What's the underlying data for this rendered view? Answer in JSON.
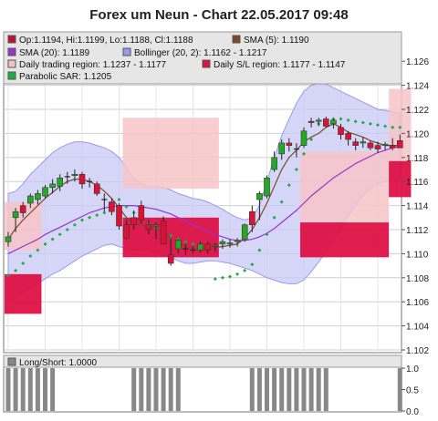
{
  "chart_data": {
    "type": "candlestick",
    "title": "Forex um Neun - Chart 22.05.2017 09:48",
    "ylim": [
      1.102,
      1.127
    ],
    "yticks": [
      "1.126",
      "1.124",
      "1.122",
      "1.120",
      "1.118",
      "1.116",
      "1.114",
      "1.112",
      "1.110",
      "1.108",
      "1.106",
      "1.104",
      "1.102"
    ],
    "grid": true,
    "legend": {
      "placement": "top",
      "entries": [
        {
          "label": "Op:1.1194, Hi:1.1199, Lo:1.1188, Cl:1.1188",
          "color": "#c01030"
        },
        {
          "label": "SMA (5): 1.1190",
          "color": "#7a4a2a"
        },
        {
          "label": "SMA (20): 1.1189",
          "color": "#9933cc"
        },
        {
          "label": "Bollinger (20, 2): 1.1162 - 1.1217",
          "color": "#9999ee"
        },
        {
          "label": "Daily trading region: 1.1237 - 1.1177",
          "color": "#f4c2c2"
        },
        {
          "label": "Daily S/L region: 1.1177 - 1.1147",
          "color": "#dd1144"
        },
        {
          "label": "Parabolic SAR: 1.1205",
          "color": "#22aa44"
        }
      ]
    },
    "colors": {
      "up": "#22aa22",
      "down": "#dd1133",
      "doji": "#333333",
      "sma5": "#7a4a2a",
      "sma20": "#9933cc",
      "bollinger_fill": "#c8c8f6",
      "bollinger_line": "#9999ee",
      "trading_region": "#f7c4c8",
      "sl_region": "#dd1144",
      "sar": "#22aa44",
      "panel_bg": "#e6e6e6",
      "ls_bar": "#888888"
    },
    "daily_regions": [
      {
        "start": 0,
        "end": 4,
        "trade": [
          1.1143,
          1.1103
        ],
        "sl": [
          1.1083,
          1.105
        ]
      },
      {
        "start": 16,
        "end": 28,
        "trade": [
          1.1213,
          1.1154
        ],
        "sl": [
          1.113,
          1.1097
        ]
      },
      {
        "start": 40,
        "end": 51,
        "trade": [
          1.1185,
          1.1126
        ],
        "sl": [
          1.1126,
          1.1097
        ]
      },
      {
        "start": 52,
        "end": 54,
        "trade": [
          1.1237,
          1.1177
        ],
        "sl": [
          1.1177,
          1.1147
        ]
      }
    ],
    "candles": [
      {
        "o": 1.111,
        "h": 1.1118,
        "l": 1.1106,
        "c": 1.1114
      },
      {
        "o": 1.113,
        "h": 1.1138,
        "l": 1.1118,
        "c": 1.1135
      },
      {
        "o": 1.114,
        "h": 1.1143,
        "l": 1.113,
        "c": 1.1134
      },
      {
        "o": 1.1142,
        "h": 1.115,
        "l": 1.1138,
        "c": 1.1148
      },
      {
        "o": 1.1145,
        "h": 1.1153,
        "l": 1.1141,
        "c": 1.115
      },
      {
        "o": 1.1148,
        "h": 1.1157,
        "l": 1.1146,
        "c": 1.1155
      },
      {
        "o": 1.1155,
        "h": 1.1162,
        "l": 1.115,
        "c": 1.1158
      },
      {
        "o": 1.1156,
        "h": 1.1166,
        "l": 1.1152,
        "c": 1.1163
      },
      {
        "o": 1.1164,
        "h": 1.1168,
        "l": 1.1158,
        "c": 1.1164
      },
      {
        "o": 1.1165,
        "h": 1.117,
        "l": 1.116,
        "c": 1.1166
      },
      {
        "o": 1.1166,
        "h": 1.1168,
        "l": 1.1154,
        "c": 1.1158
      },
      {
        "o": 1.116,
        "h": 1.1163,
        "l": 1.1155,
        "c": 1.116
      },
      {
        "o": 1.1158,
        "h": 1.116,
        "l": 1.1148,
        "c": 1.115
      },
      {
        "o": 1.1145,
        "h": 1.115,
        "l": 1.1135,
        "c": 1.1145
      },
      {
        "o": 1.1143,
        "h": 1.1146,
        "l": 1.1132,
        "c": 1.1135
      },
      {
        "o": 1.114,
        "h": 1.1142,
        "l": 1.112,
        "c": 1.1123
      },
      {
        "o": 1.1124,
        "h": 1.1128,
        "l": 1.1112,
        "c": 1.1113
      },
      {
        "o": 1.113,
        "h": 1.1136,
        "l": 1.112,
        "c": 1.1124
      },
      {
        "o": 1.114,
        "h": 1.1144,
        "l": 1.1125,
        "c": 1.1128
      },
      {
        "o": 1.1124,
        "h": 1.1128,
        "l": 1.1116,
        "c": 1.112
      },
      {
        "o": 1.1123,
        "h": 1.1126,
        "l": 1.1112,
        "c": 1.1124
      },
      {
        "o": 1.1127,
        "h": 1.1131,
        "l": 1.1108,
        "c": 1.1108
      },
      {
        "o": 1.1099,
        "h": 1.1112,
        "l": 1.109,
        "c": 1.1092
      },
      {
        "o": 1.1104,
        "h": 1.1112,
        "l": 1.11,
        "c": 1.1111
      },
      {
        "o": 1.1104,
        "h": 1.1108,
        "l": 1.1099,
        "c": 1.1104
      },
      {
        "o": 1.1103,
        "h": 1.1106,
        "l": 1.11,
        "c": 1.1103
      },
      {
        "o": 1.1103,
        "h": 1.111,
        "l": 1.1101,
        "c": 1.1108
      },
      {
        "o": 1.1108,
        "h": 1.111,
        "l": 1.11,
        "c": 1.1103
      },
      {
        "o": 1.1106,
        "h": 1.1109,
        "l": 1.1102,
        "c": 1.1107
      },
      {
        "o": 1.1108,
        "h": 1.1112,
        "l": 1.1104,
        "c": 1.111
      },
      {
        "o": 1.1108,
        "h": 1.1112,
        "l": 1.1105,
        "c": 1.1109
      },
      {
        "o": 1.111,
        "h": 1.1113,
        "l": 1.1106,
        "c": 1.1111
      },
      {
        "o": 1.1112,
        "h": 1.1125,
        "l": 1.111,
        "c": 1.1124
      },
      {
        "o": 1.1135,
        "h": 1.114,
        "l": 1.1118,
        "c": 1.1124
      },
      {
        "o": 1.1145,
        "h": 1.1152,
        "l": 1.1128,
        "c": 1.115
      },
      {
        "o": 1.1148,
        "h": 1.1165,
        "l": 1.1146,
        "c": 1.1163
      },
      {
        "o": 1.117,
        "h": 1.1185,
        "l": 1.1168,
        "c": 1.118
      },
      {
        "o": 1.1183,
        "h": 1.1195,
        "l": 1.1178,
        "c": 1.1192
      },
      {
        "o": 1.1192,
        "h": 1.1196,
        "l": 1.1185,
        "c": 1.119
      },
      {
        "o": 1.1187,
        "h": 1.1192,
        "l": 1.118,
        "c": 1.1187
      },
      {
        "o": 1.119,
        "h": 1.1205,
        "l": 1.1188,
        "c": 1.1202
      },
      {
        "o": 1.121,
        "h": 1.1213,
        "l": 1.1205,
        "c": 1.1209
      },
      {
        "o": 1.121,
        "h": 1.1213,
        "l": 1.1206,
        "c": 1.1211
      },
      {
        "o": 1.1212,
        "h": 1.1214,
        "l": 1.1205,
        "c": 1.1206
      },
      {
        "o": 1.1208,
        "h": 1.1212,
        "l": 1.1204,
        "c": 1.1211
      },
      {
        "o": 1.1205,
        "h": 1.1208,
        "l": 1.1195,
        "c": 1.1199
      },
      {
        "o": 1.12,
        "h": 1.1202,
        "l": 1.119,
        "c": 1.1195
      },
      {
        "o": 1.1193,
        "h": 1.1196,
        "l": 1.1186,
        "c": 1.119
      },
      {
        "o": 1.1192,
        "h": 1.1197,
        "l": 1.1188,
        "c": 1.1193
      },
      {
        "o": 1.1192,
        "h": 1.1194,
        "l": 1.1186,
        "c": 1.1188
      },
      {
        "o": 1.119,
        "h": 1.1193,
        "l": 1.1184,
        "c": 1.1187
      },
      {
        "o": 1.119,
        "h": 1.1193,
        "l": 1.1186,
        "c": 1.1191
      },
      {
        "o": 1.119,
        "h": 1.1196,
        "l": 1.1186,
        "c": 1.1188
      },
      {
        "o": 1.1194,
        "h": 1.1199,
        "l": 1.1188,
        "c": 1.1188
      }
    ],
    "sma5": [
      1.1112,
      1.1121,
      1.1128,
      1.1134,
      1.114,
      1.1146,
      1.1151,
      1.1156,
      1.116,
      1.1162,
      1.1162,
      1.116,
      1.1157,
      1.1152,
      1.1146,
      1.1138,
      1.113,
      1.1126,
      1.1124,
      1.1122,
      1.1121,
      1.1118,
      1.1113,
      1.1109,
      1.1106,
      1.1104,
      1.1104,
      1.1104,
      1.1105,
      1.1106,
      1.1107,
      1.1108,
      1.1113,
      1.112,
      1.113,
      1.1142,
      1.1156,
      1.117,
      1.118,
      1.1186,
      1.1193,
      1.1197,
      1.12,
      1.1205,
      1.1208,
      1.1205,
      1.1201,
      1.1199,
      1.1197,
      1.1194,
      1.1192,
      1.119,
      1.119,
      1.119
    ],
    "sma20": [
      1.11,
      1.1103,
      1.1106,
      1.1109,
      1.1112,
      1.1116,
      1.1119,
      1.1122,
      1.1125,
      1.1128,
      1.1131,
      1.1134,
      1.1136,
      1.1138,
      1.1139,
      1.114,
      1.114,
      1.114,
      1.1139,
      1.1138,
      1.1137,
      1.1135,
      1.1133,
      1.113,
      1.1127,
      1.1124,
      1.1121,
      1.1118,
      1.1116,
      1.1114,
      1.1112,
      1.1111,
      1.1111,
      1.1112,
      1.1114,
      1.1117,
      1.1121,
      1.1126,
      1.1131,
      1.1136,
      1.1142,
      1.1148,
      1.1153,
      1.1158,
      1.1163,
      1.1167,
      1.1171,
      1.1175,
      1.1178,
      1.1181,
      1.1184,
      1.1186,
      1.1188,
      1.1189
    ],
    "bb_upper": [
      1.115,
      1.1152,
      1.1158,
      1.1166,
      1.1172,
      1.1178,
      1.1184,
      1.1188,
      1.1191,
      1.1193,
      1.1193,
      1.1192,
      1.119,
      1.1188,
      1.1185,
      1.118,
      1.1172,
      1.1162,
      1.1158,
      1.1156,
      1.1156,
      1.1155,
      1.1153,
      1.115,
      1.1148,
      1.1146,
      1.1145,
      1.1143,
      1.114,
      1.1137,
      1.1133,
      1.113,
      1.1128,
      1.113,
      1.114,
      1.116,
      1.118,
      1.1198,
      1.1212,
      1.1225,
      1.1235,
      1.124,
      1.1242,
      1.1241,
      1.1238,
      1.1235,
      1.1232,
      1.1229,
      1.1226,
      1.1223,
      1.122,
      1.1219,
      1.1218,
      1.1217
    ],
    "bb_lower": [
      1.1062,
      1.1064,
      1.1068,
      1.1072,
      1.1075,
      1.1079,
      1.1083,
      1.1086,
      1.109,
      1.1094,
      1.1098,
      1.1101,
      1.1104,
      1.1107,
      1.1108,
      1.1106,
      1.1104,
      1.1103,
      1.1103,
      1.1103,
      1.1101,
      1.1099,
      1.1097,
      1.1094,
      1.1092,
      1.1092,
      1.1093,
      1.1094,
      1.1094,
      1.1093,
      1.1092,
      1.109,
      1.1088,
      1.1086,
      1.1083,
      1.108,
      1.1078,
      1.1076,
      1.1075,
      1.1075,
      1.1078,
      1.1085,
      1.1093,
      1.1102,
      1.1112,
      1.1122,
      1.1132,
      1.114,
      1.1148,
      1.1154,
      1.1158,
      1.116,
      1.1161,
      1.1162
    ],
    "sar": [
      1.1082,
      1.1086,
      1.1092,
      1.1098,
      1.1103,
      1.1108,
      1.1112,
      1.1116,
      1.112,
      1.1124,
      1.1128,
      1.113,
      1.1132,
      1.1134,
      1.1136,
      1.1145,
      1.1139,
      1.1134,
      1.1129,
      1.1125,
      1.1121,
      1.1118,
      1.1115,
      1.1112,
      1.111,
      1.1108,
      1.1106,
      1.1104,
      1.1079,
      1.108,
      1.1081,
      1.1083,
      1.1086,
      1.1091,
      1.1103,
      1.1116,
      1.113,
      1.1143,
      1.1157,
      1.117,
      1.1183,
      1.1195,
      1.1208,
      1.121,
      1.1212,
      1.1212,
      1.1211,
      1.121,
      1.1209,
      1.1208,
      1.1207,
      1.1206,
      1.1205,
      1.1205
    ],
    "long_short": {
      "label": "Long/Short: 1.0000",
      "value": 1.0,
      "yticks": [
        "1.0",
        "0.5",
        "0.0"
      ],
      "bars": [
        1,
        1,
        1,
        1,
        1,
        1,
        1,
        0,
        0,
        0,
        0,
        0,
        0,
        0,
        0,
        0,
        0,
        1,
        1,
        1,
        1,
        1,
        1,
        1,
        0,
        0,
        0,
        0,
        0,
        0,
        0,
        0,
        0,
        1,
        1,
        1,
        1,
        1,
        1,
        1,
        1,
        1,
        1,
        1,
        0,
        0,
        0,
        0,
        0,
        0,
        0,
        0,
        0,
        1
      ]
    }
  }
}
